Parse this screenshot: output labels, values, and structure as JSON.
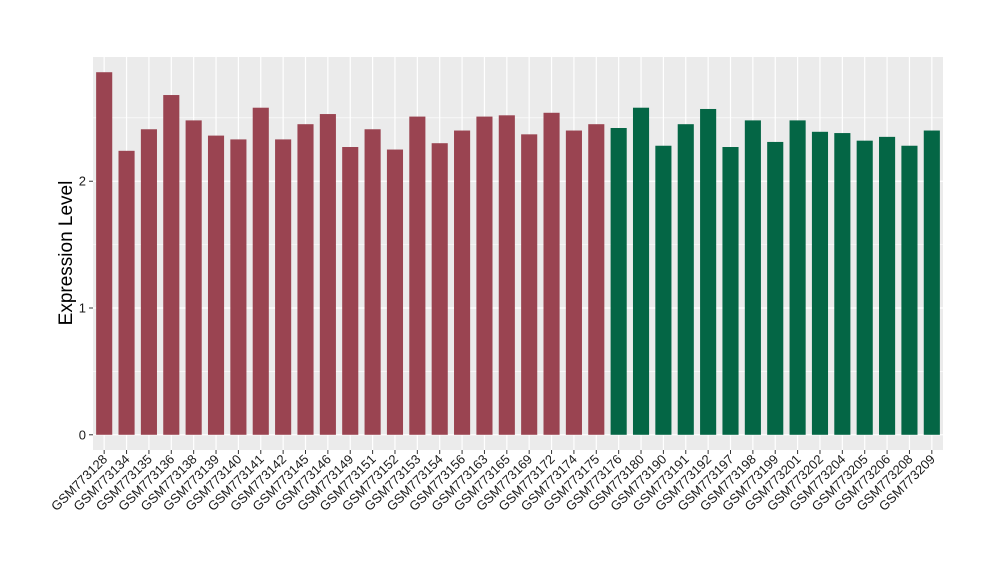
{
  "chart_data": {
    "type": "bar",
    "ylabel": "Expression Level",
    "xlabel": "",
    "title": "",
    "ylim": [
      -0.12,
      2.98
    ],
    "yticks": [
      0,
      1,
      2
    ],
    "grid": true,
    "legend": "none",
    "colors": {
      "group1": "#9A4451",
      "group2": "#046645",
      "panel": "#EBEBEB",
      "grid": "#FFFFFF"
    },
    "categories": [
      "GSM773128",
      "GSM773134",
      "GSM773135",
      "GSM773136",
      "GSM773138",
      "GSM773139",
      "GSM773140",
      "GSM773141",
      "GSM773142",
      "GSM773145",
      "GSM773146",
      "GSM773149",
      "GSM773151",
      "GSM773152",
      "GSM773153",
      "GSM773154",
      "GSM773156",
      "GSM773163",
      "GSM773165",
      "GSM773169",
      "GSM773172",
      "GSM773174",
      "GSM773175",
      "GSM773176",
      "GSM773180",
      "GSM773190",
      "GSM773191",
      "GSM773192",
      "GSM773197",
      "GSM773198",
      "GSM773199",
      "GSM773201",
      "GSM773202",
      "GSM773204",
      "GSM773205",
      "GSM773206",
      "GSM773208",
      "GSM773209"
    ],
    "values": [
      2.86,
      2.24,
      2.41,
      2.68,
      2.48,
      2.36,
      2.33,
      2.58,
      2.33,
      2.45,
      2.53,
      2.27,
      2.41,
      2.25,
      2.51,
      2.3,
      2.4,
      2.51,
      2.52,
      2.37,
      2.54,
      2.4,
      2.45,
      2.42,
      2.58,
      2.28,
      2.45,
      2.57,
      2.27,
      2.48,
      2.31,
      2.48,
      2.39,
      2.38,
      2.32,
      2.35,
      2.28,
      2.4
    ],
    "groups": [
      1,
      1,
      1,
      1,
      1,
      1,
      1,
      1,
      1,
      1,
      1,
      1,
      1,
      1,
      1,
      1,
      1,
      1,
      1,
      1,
      1,
      1,
      1,
      2,
      2,
      2,
      2,
      2,
      2,
      2,
      2,
      2,
      2,
      2,
      2,
      2,
      2,
      2
    ]
  }
}
